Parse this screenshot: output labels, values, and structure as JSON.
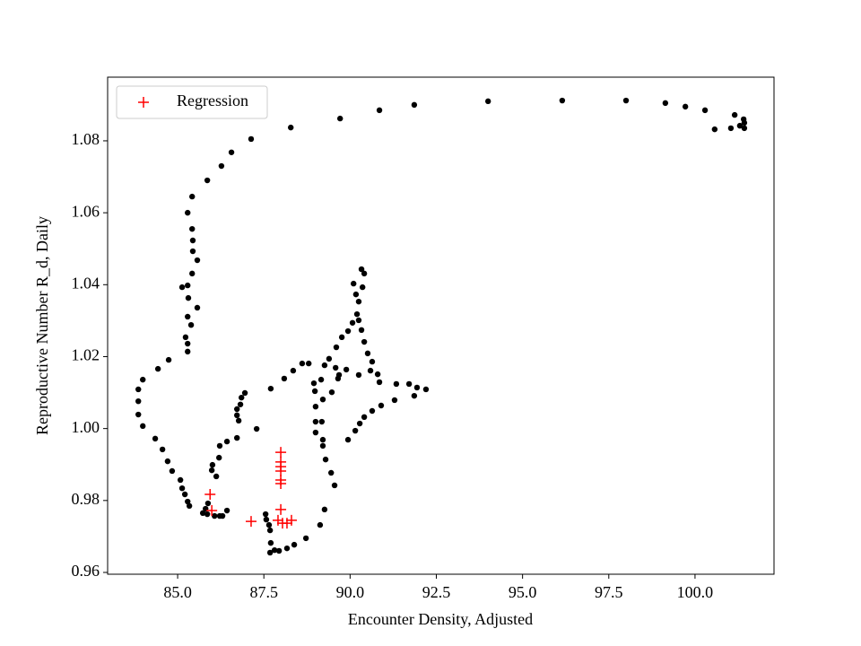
{
  "chart_data": {
    "type": "scatter",
    "xlabel": "Encounter Density, Adjusted",
    "ylabel": "Reproductive Number R_d, Daily",
    "xlim": [
      82.97,
      102.29
    ],
    "ylim": [
      0.9595,
      1.0977
    ],
    "xticks": [
      {
        "value": 85,
        "label": "85.0"
      },
      {
        "value": 87.5,
        "label": "87.5"
      },
      {
        "value": 90,
        "label": "90.0"
      },
      {
        "value": 92.5,
        "label": "92.5"
      },
      {
        "value": 95,
        "label": "95.0"
      },
      {
        "value": 97.5,
        "label": "97.5"
      },
      {
        "value": 100,
        "label": "100.0"
      }
    ],
    "yticks": [
      0.96,
      0.98,
      {
        "value": 1.0,
        "label": "1.00"
      },
      1.02,
      1.04,
      1.06,
      1.08
    ],
    "legend": "upper left",
    "series": [
      {
        "color": "#000000",
        "marker": "circle",
        "x": [
          101.43,
          101.43,
          101.41,
          101.3,
          101.15,
          101.04,
          100.57,
          100.29,
          99.72,
          99.14,
          98.0,
          96.15,
          94.0,
          91.86,
          90.85,
          89.71,
          88.28,
          87.13,
          86.56,
          86.27,
          85.86,
          85.42,
          85.29,
          85.42,
          85.44,
          85.44,
          85.57,
          85.42,
          85.29,
          85.13,
          85.31,
          85.57,
          85.29,
          85.39,
          85.23,
          85.29,
          85.29,
          84.74,
          84.43,
          83.99,
          83.86,
          83.86,
          83.86,
          83.99,
          84.35,
          84.56,
          84.71,
          84.84,
          85.08,
          85.13,
          85.21,
          85.29,
          85.34,
          85.73,
          85.81,
          85.88,
          85.86,
          86.07,
          86.22,
          86.3,
          86.43,
          85.99,
          86.01,
          86.12,
          86.2,
          86.22,
          86.43,
          86.72,
          86.77,
          86.72,
          86.72,
          86.82,
          86.85,
          86.95,
          87.29,
          87.55,
          87.57,
          87.65,
          87.68,
          87.7,
          87.68,
          87.81,
          87.94,
          88.17,
          88.38,
          88.72,
          89.13,
          89.26,
          89.55,
          89.45,
          89.29,
          89.21,
          89.0,
          89.0,
          89.0,
          88.98,
          88.95,
          89.16,
          89.26,
          89.39,
          89.58,
          89.68,
          89.47,
          89.21,
          89.18,
          89.21,
          89.65,
          89.89,
          90.25,
          90.59,
          90.8,
          90.85,
          91.34,
          91.71,
          91.94,
          92.2,
          91.86,
          91.29,
          90.9,
          90.64,
          90.41,
          90.28,
          90.15,
          89.94,
          89.6,
          89.76,
          89.94,
          90.07,
          90.2,
          90.25,
          90.36,
          90.41,
          90.33,
          90.1,
          90.17,
          90.25,
          90.33,
          90.41,
          90.51,
          90.64,
          88.61,
          88.8,
          88.35,
          88.09,
          87.7
        ],
        "values": [
          1.0835,
          1.085,
          1.086,
          1.0842,
          1.0872,
          1.0835,
          1.0832,
          1.0885,
          1.0895,
          1.0905,
          1.0912,
          1.0912,
          1.091,
          1.09,
          1.0885,
          1.0862,
          1.0837,
          1.0805,
          1.0768,
          1.073,
          1.069,
          1.0645,
          1.06,
          1.0555,
          1.0523,
          1.0493,
          1.0468,
          1.0431,
          1.0398,
          1.0393,
          1.0363,
          1.0336,
          1.0311,
          1.0288,
          1.0254,
          1.0236,
          1.0214,
          1.0191,
          1.0166,
          1.0136,
          1.0109,
          1.0076,
          1.0039,
          1.0007,
          0.9972,
          0.9942,
          0.9909,
          0.9882,
          0.9857,
          0.9834,
          0.9817,
          0.9797,
          0.9785,
          0.9765,
          0.9777,
          0.9792,
          0.9762,
          0.9757,
          0.9757,
          0.9757,
          0.9772,
          0.9884,
          0.9899,
          0.9867,
          0.9919,
          0.9952,
          0.9964,
          0.9974,
          1.0022,
          1.0037,
          1.0054,
          1.0067,
          1.0086,
          1.0099,
          0.9999,
          0.9762,
          0.9747,
          0.9732,
          0.9717,
          0.9682,
          0.9655,
          0.9662,
          0.966,
          0.9667,
          0.9677,
          0.9695,
          0.9732,
          0.9775,
          0.9842,
          0.9877,
          0.9914,
          0.9952,
          0.9989,
          1.0019,
          1.0061,
          1.0104,
          1.0126,
          1.0136,
          1.0176,
          1.0194,
          1.0169,
          1.0149,
          1.0101,
          1.0081,
          1.0019,
          0.9969,
          1.0139,
          1.0164,
          1.0149,
          1.0161,
          1.0151,
          1.0129,
          1.0124,
          1.0124,
          1.0114,
          1.0109,
          1.0091,
          1.0079,
          1.0064,
          1.0049,
          1.0032,
          1.0014,
          0.9994,
          0.9969,
          1.0226,
          1.0254,
          1.0271,
          1.0294,
          1.0318,
          1.0353,
          1.0393,
          1.0431,
          1.0443,
          1.0403,
          1.0373,
          1.0301,
          1.0274,
          1.0241,
          1.0209,
          1.0186,
          1.0181,
          1.0181,
          1.0161,
          1.0139,
          1.0111
        ]
      },
      {
        "name": "Regression",
        "color": "#ff0000",
        "marker": "plus",
        "x": [
          85.94,
          85.99,
          87.13,
          87.99,
          87.99,
          87.99,
          87.99,
          87.99,
          87.99,
          87.99,
          87.91,
          88.04,
          88.17,
          88.3
        ],
        "values": [
          0.9817,
          0.9772,
          0.9742,
          0.9934,
          0.9907,
          0.9894,
          0.9882,
          0.9857,
          0.9847,
          0.9775,
          0.9745,
          0.9737,
          0.9737,
          0.9745
        ]
      }
    ]
  }
}
